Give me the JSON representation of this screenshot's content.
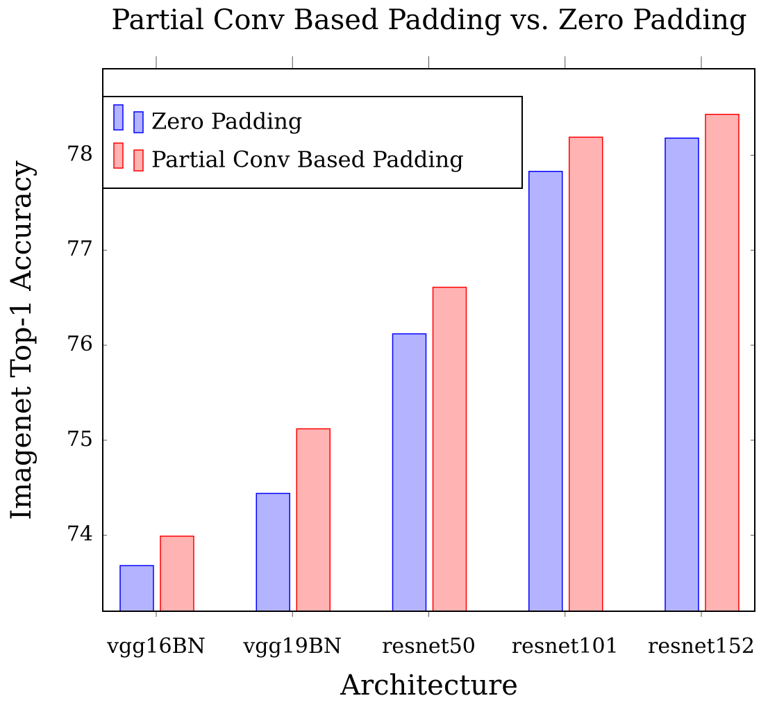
{
  "chart_data": {
    "type": "bar",
    "title": "Partial Conv Based Padding vs. Zero Padding",
    "x_label": "Architecture",
    "y_label": "Imagenet Top-1 Accuracy",
    "categories": [
      "vgg16BN",
      "vgg19BN",
      "resnet50",
      "resnet101",
      "resnet152"
    ],
    "series": [
      {
        "name": "Zero Padding",
        "color": "#b3b3ff",
        "edge_color": "#0000ff",
        "values": [
          73.68,
          74.44,
          76.12,
          77.83,
          78.18
        ]
      },
      {
        "name": "Partial Conv Based Padding",
        "color": "#ffb3b3",
        "edge_color": "#ff0000",
        "values": [
          73.99,
          75.12,
          76.61,
          78.19,
          78.43
        ]
      }
    ],
    "ylim": [
      73.2,
      78.91
    ],
    "yticks": [
      74,
      75,
      76,
      77,
      78
    ],
    "legend": "north west"
  }
}
